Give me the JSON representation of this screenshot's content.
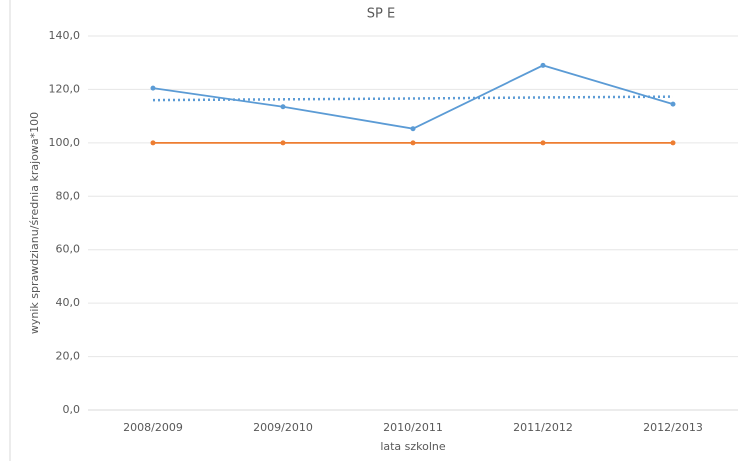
{
  "chart_data": {
    "type": "line",
    "title": "SP E",
    "y_label": "wynik sprawdzianu/średnia krajowa*100",
    "x_label": "lata szkolne",
    "categories": [
      "2008/2009",
      "2009/2010",
      "2010/2011",
      "2011/2012",
      "2012/2013"
    ],
    "series": [
      {
        "color": "#5b9bd5",
        "values": [
          120.5,
          113.5,
          105.3,
          129.0,
          114.5
        ],
        "markers": true
      },
      {
        "color": "#ed7d31",
        "values": [
          100,
          100,
          100,
          100,
          100
        ],
        "markers": true
      },
      {
        "color": "#5b9bd5",
        "values": [
          116.0,
          116.3,
          116.6,
          117.0,
          117.3
        ],
        "markers": false,
        "dotted": true
      }
    ],
    "ylim": [
      0,
      140
    ],
    "yticks": [
      {
        "value": 0,
        "label": "0,0"
      },
      {
        "value": 20,
        "label": "20,0"
      },
      {
        "value": 40,
        "label": "40,0"
      },
      {
        "value": 60,
        "label": "60,0"
      },
      {
        "value": 80,
        "label": "80,0"
      },
      {
        "value": 100,
        "label": "100,0"
      },
      {
        "value": 120,
        "label": "120,0"
      },
      {
        "value": 140,
        "label": "140,0"
      }
    ],
    "grid": true
  }
}
